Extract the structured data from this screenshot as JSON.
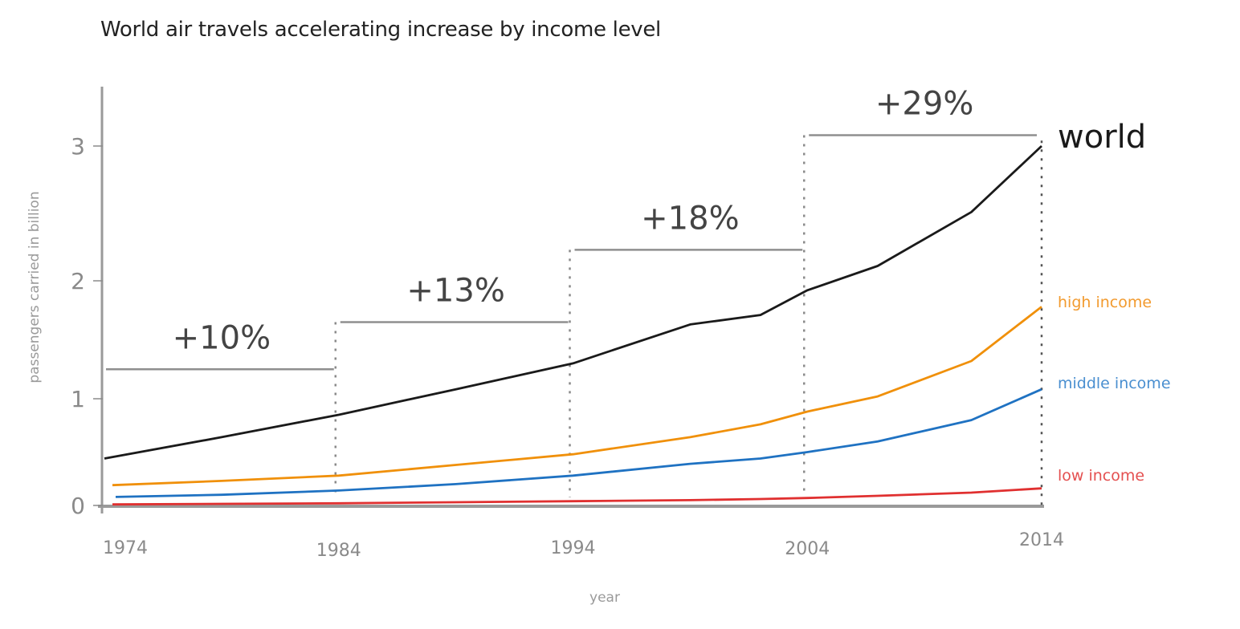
{
  "title": "World air travels accelerating increase by income level",
  "chart_data": {
    "type": "line",
    "title": "World air travels accelerating increase by income level",
    "xlabel": "year",
    "ylabel": "passengers carried in billion",
    "xlim": [
      1974,
      2014
    ],
    "ylim": [
      0,
      3
    ],
    "x_ticks": [
      "1974",
      "1984",
      "1994",
      "2004",
      "2014"
    ],
    "y_ticks": [
      "0",
      "1",
      "2",
      "3"
    ],
    "grid": false,
    "x": [
      1974,
      1979,
      1984,
      1989,
      1994,
      1999,
      2002,
      2004,
      2007,
      2011,
      2014
    ],
    "series": [
      {
        "name": "world",
        "color": "#1a1a1a",
        "values": [
          0.44,
          0.64,
          0.85,
          1.08,
          1.3,
          1.63,
          1.71,
          1.92,
          2.11,
          2.51,
          3.0
        ]
      },
      {
        "name": "high income",
        "color": "#f0900a",
        "values": [
          0.19,
          0.23,
          0.28,
          0.38,
          0.48,
          0.64,
          0.76,
          0.88,
          1.02,
          1.32,
          1.78
        ]
      },
      {
        "name": "middle income",
        "color": "#1f72c2",
        "values": [
          0.08,
          0.1,
          0.14,
          0.2,
          0.28,
          0.39,
          0.44,
          0.5,
          0.6,
          0.8,
          1.08
        ]
      },
      {
        "name": "low income",
        "color": "#e03030",
        "values": [
          0.01,
          0.015,
          0.02,
          0.03,
          0.04,
          0.05,
          0.06,
          0.07,
          0.09,
          0.12,
          0.16
        ]
      }
    ],
    "annotations": [
      {
        "label": "+10%",
        "from": 1974,
        "to": 1984,
        "level": 1.25
      },
      {
        "label": "+13%",
        "from": 1984,
        "to": 1994,
        "level": 1.65
      },
      {
        "label": "+18%",
        "from": 1994,
        "to": 2004,
        "level": 2.23
      },
      {
        "label": "+29%",
        "from": 2004,
        "to": 2014,
        "level": 3.08
      }
    ],
    "series_labels": [
      "world",
      "high income",
      "middle income",
      "low income"
    ],
    "legend": "right"
  }
}
